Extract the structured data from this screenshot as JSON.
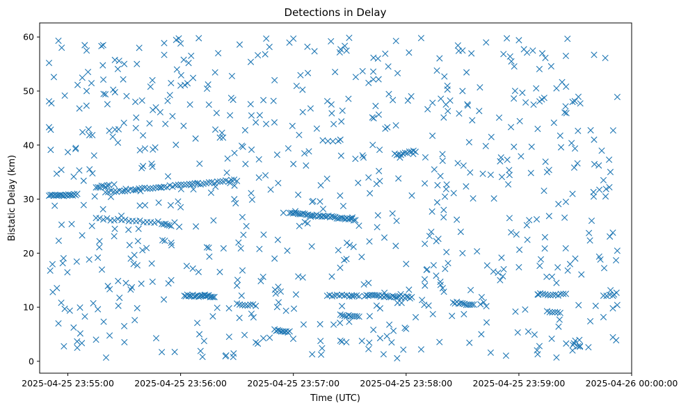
{
  "chart_data": {
    "type": "scatter",
    "title": "Detections in Delay",
    "xlabel": "Time (UTC)",
    "ylabel": "Bistatic Delay (km)",
    "x_ticks": [
      "2025-04-25 23:55:00",
      "2025-04-25 23:56:00",
      "2025-04-25 23:57:00",
      "2025-04-25 23:58:00",
      "2025-04-25 23:59:00",
      "2025-04-26 00:00:00"
    ],
    "y_ticks": [
      0,
      10,
      20,
      30,
      40,
      50,
      60
    ],
    "xlim": [
      "2025-04-25 23:54:45",
      "2025-04-26 00:00:00"
    ],
    "ylim": [
      -2.2,
      62.6
    ],
    "grid": false,
    "marker": "x",
    "color": "#1f77b4",
    "tracks": [
      {
        "t_start": "2025-04-25 23:54:50",
        "t_end": "2025-04-25 23:55:05",
        "delay_start": 30.6,
        "delay_end": 30.9,
        "count": 20
      },
      {
        "t_start": "2025-04-25 23:55:20",
        "t_end": "2025-04-25 23:56:30",
        "delay_start": 31.3,
        "delay_end": 33.5,
        "count": 48
      },
      {
        "t_start": "2025-04-25 23:55:15",
        "t_end": "2025-04-25 23:55:48",
        "delay_start": 26.4,
        "delay_end": 25.7,
        "count": 18
      },
      {
        "t_start": "2025-04-25 23:55:50",
        "t_end": "2025-04-25 23:55:55",
        "delay_start": 25.4,
        "delay_end": 25.2,
        "count": 6
      },
      {
        "t_start": "2025-04-25 23:56:02",
        "t_end": "2025-04-25 23:56:18",
        "delay_start": 12.2,
        "delay_end": 12.0,
        "count": 22
      },
      {
        "t_start": "2025-04-25 23:56:58",
        "t_end": "2025-04-25 23:57:33",
        "delay_start": 27.5,
        "delay_end": 26.2,
        "count": 40
      },
      {
        "t_start": "2025-04-25 23:57:18",
        "t_end": "2025-04-25 23:57:35",
        "delay_start": 12.2,
        "delay_end": 12.1,
        "count": 14
      },
      {
        "t_start": "2025-04-25 23:57:25",
        "t_end": "2025-04-25 23:57:35",
        "delay_start": 8.6,
        "delay_end": 8.1,
        "count": 10
      },
      {
        "t_start": "2025-04-25 23:56:50",
        "t_end": "2025-04-25 23:56:58",
        "delay_start": 5.8,
        "delay_end": 5.4,
        "count": 10
      },
      {
        "t_start": "2025-04-25 23:57:38",
        "t_end": "2025-04-25 23:58:03",
        "delay_start": 12.2,
        "delay_end": 11.8,
        "count": 28
      },
      {
        "t_start": "2025-04-25 23:57:55",
        "t_end": "2025-04-25 23:58:05",
        "delay_start": 38.2,
        "delay_end": 38.9,
        "count": 10
      },
      {
        "t_start": "2025-04-25 23:58:25",
        "t_end": "2025-04-25 23:58:36",
        "delay_start": 10.9,
        "delay_end": 10.4,
        "count": 12
      },
      {
        "t_start": "2025-04-25 23:59:10",
        "t_end": "2025-04-25 23:59:25",
        "delay_start": 12.4,
        "delay_end": 12.3,
        "count": 12
      },
      {
        "t_start": "2025-04-25 23:59:45",
        "t_end": "2025-04-25 23:59:50",
        "delay_start": 12.2,
        "delay_end": 12.1,
        "count": 4
      },
      {
        "t_start": "2025-04-25 23:59:15",
        "t_end": "2025-04-25 23:59:22",
        "delay_start": 9.2,
        "delay_end": 9.1,
        "count": 6
      },
      {
        "t_start": "2025-04-25 23:55:15",
        "t_end": "2025-04-25 23:55:22",
        "delay_start": 32.2,
        "delay_end": 32.5,
        "count": 8
      },
      {
        "t_start": "2025-04-25 23:56:30",
        "t_end": "2025-04-25 23:56:40",
        "delay_start": 10.5,
        "delay_end": 10.4,
        "count": 8
      }
    ],
    "clutter_points": [
      {
        "t": "2025-04-25 23:54:55",
        "d": 59.3
      },
      {
        "t": "2025-04-25 23:55:10",
        "d": 57.5
      },
      {
        "t": "2025-04-25 23:55:30",
        "d": 55.0
      },
      {
        "t": "2025-04-25 23:55:45",
        "d": 52.0
      },
      {
        "t": "2025-04-25 23:56:00",
        "d": 58.8
      },
      {
        "t": "2025-04-25 23:56:20",
        "d": 57.0
      },
      {
        "t": "2025-04-25 23:56:45",
        "d": 56.8
      },
      {
        "t": "2025-04-25 23:57:00",
        "d": 59.7
      },
      {
        "t": "2025-04-25 23:57:20",
        "d": 59.2
      },
      {
        "t": "2025-04-25 23:57:45",
        "d": 56.0
      },
      {
        "t": "2025-04-25 23:58:08",
        "d": 59.8
      },
      {
        "t": "2025-04-25 23:58:30",
        "d": 57.5
      },
      {
        "t": "2025-04-25 23:59:00",
        "d": 59.4
      },
      {
        "t": "2025-04-25 23:59:25",
        "d": 56.5
      },
      {
        "t": "2025-04-25 23:59:40",
        "d": 56.7
      },
      {
        "t": "2025-04-25 23:55:05",
        "d": 2.5
      },
      {
        "t": "2025-04-25 23:55:50",
        "d": 1.7
      },
      {
        "t": "2025-04-25 23:56:28",
        "d": 0.8
      },
      {
        "t": "2025-04-25 23:57:10",
        "d": 1.3
      },
      {
        "t": "2025-04-25 23:57:48",
        "d": 1.3
      },
      {
        "t": "2025-04-25 23:58:08",
        "d": 2.2
      },
      {
        "t": "2025-04-25 23:58:45",
        "d": 1.6
      },
      {
        "t": "2025-04-25 23:59:10",
        "d": 1.3
      },
      {
        "t": "2025-04-25 23:59:20",
        "d": 0.7
      },
      {
        "t": "2025-04-25 23:59:37",
        "d": 2.6
      },
      {
        "t": "2025-04-25 23:54:50",
        "d": 55.2
      },
      {
        "t": "2025-04-25 23:54:50",
        "d": 48.1
      },
      {
        "t": "2025-04-25 23:54:50",
        "d": 43.3
      },
      {
        "t": "2025-04-25 23:55:00",
        "d": 38.7
      },
      {
        "t": "2025-04-25 23:55:20",
        "d": 49.4
      },
      {
        "t": "2025-04-25 23:55:40",
        "d": 41.8
      },
      {
        "t": "2025-04-25 23:56:05",
        "d": 47.5
      },
      {
        "t": "2025-04-25 23:56:40",
        "d": 44.2
      },
      {
        "t": "2025-04-25 23:57:05",
        "d": 46.1
      },
      {
        "t": "2025-04-25 23:57:25",
        "d": 41.0
      },
      {
        "t": "2025-04-25 23:57:50",
        "d": 43.3
      },
      {
        "t": "2025-04-25 23:58:20",
        "d": 45.1
      },
      {
        "t": "2025-04-25 23:58:50",
        "d": 37.0
      },
      {
        "t": "2025-04-25 23:59:10",
        "d": 43.0
      },
      {
        "t": "2025-04-25 23:59:40",
        "d": 41.0
      },
      {
        "t": "2025-04-25 23:59:48",
        "d": 37.3
      },
      {
        "t": "2025-04-25 23:59:45",
        "d": 33.5
      },
      {
        "t": "2025-04-25 23:59:50",
        "d": 23.8
      },
      {
        "t": "2025-04-25 23:59:50",
        "d": 9.8
      },
      {
        "t": "2025-04-25 23:59:38",
        "d": 7.4
      },
      {
        "t": "2025-04-25 23:54:52",
        "d": 12.8
      },
      {
        "t": "2025-04-25 23:54:55",
        "d": 7.0
      },
      {
        "t": "2025-04-25 23:55:15",
        "d": 4.0
      },
      {
        "t": "2025-04-25 23:55:30",
        "d": 6.5
      },
      {
        "t": "2025-04-25 23:56:10",
        "d": 5.0
      },
      {
        "t": "2025-04-25 23:56:40",
        "d": 3.5
      },
      {
        "t": "2025-04-25 23:57:25",
        "d": 3.8
      },
      {
        "t": "2025-04-25 23:58:00",
        "d": 6.0
      },
      {
        "t": "2025-04-25 23:58:40",
        "d": 5.0
      },
      {
        "t": "2025-04-25 23:59:05",
        "d": 5.5
      },
      {
        "t": "2025-04-25 23:59:30",
        "d": 3.8
      },
      {
        "t": "2025-04-25 23:55:35",
        "d": 18.0
      },
      {
        "t": "2025-04-25 23:56:15",
        "d": 21.0
      },
      {
        "t": "2025-04-25 23:56:50",
        "d": 19.0
      },
      {
        "t": "2025-04-25 23:57:30",
        "d": 21.5
      },
      {
        "t": "2025-04-25 23:58:00",
        "d": 18.0
      },
      {
        "t": "2025-04-25 23:58:30",
        "d": 20.0
      },
      {
        "t": "2025-04-25 23:59:00",
        "d": 17.4
      },
      {
        "t": "2025-04-25 23:59:30",
        "d": 19.0
      },
      {
        "t": "2025-04-25 23:55:25",
        "d": 24.5
      },
      {
        "t": "2025-04-25 23:56:00",
        "d": 28.5
      },
      {
        "t": "2025-04-25 23:56:35",
        "d": 25.0
      },
      {
        "t": "2025-04-25 23:57:10",
        "d": 29.5
      },
      {
        "t": "2025-04-25 23:57:45",
        "d": 27.0
      },
      {
        "t": "2025-04-25 23:58:20",
        "d": 28.0
      },
      {
        "t": "2025-04-25 23:58:55",
        "d": 26.5
      },
      {
        "t": "2025-04-25 23:59:25",
        "d": 29.5
      },
      {
        "t": "2025-04-25 23:55:45",
        "d": 36.0
      },
      {
        "t": "2025-04-25 23:56:25",
        "d": 37.5
      },
      {
        "t": "2025-04-25 23:57:00",
        "d": 36.5
      },
      {
        "t": "2025-04-25 23:57:40",
        "d": 34.0
      },
      {
        "t": "2025-04-25 23:58:15",
        "d": 35.5
      },
      {
        "t": "2025-04-25 23:58:45",
        "d": 34.5
      },
      {
        "t": "2025-04-25 23:59:15",
        "d": 35.0
      },
      {
        "t": "2025-04-25 23:55:55",
        "d": 15.0
      },
      {
        "t": "2025-04-25 23:56:30",
        "d": 14.0
      },
      {
        "t": "2025-04-25 23:57:05",
        "d": 15.5
      },
      {
        "t": "2025-04-25 23:57:40",
        "d": 14.5
      },
      {
        "t": "2025-04-25 23:58:10",
        "d": 14.0
      },
      {
        "t": "2025-04-25 23:58:50",
        "d": 15.0
      },
      {
        "t": "2025-04-25 23:59:20",
        "d": 14.5
      },
      {
        "t": "2025-04-25 23:55:10",
        "d": 50.0
      },
      {
        "t": "2025-04-25 23:56:00",
        "d": 51.0
      },
      {
        "t": "2025-04-25 23:56:50",
        "d": 52.0
      },
      {
        "t": "2025-04-25 23:57:40",
        "d": 51.5
      },
      {
        "t": "2025-04-25 23:58:30",
        "d": 50.0
      },
      {
        "t": "2025-04-25 23:59:20",
        "d": 50.5
      }
    ]
  }
}
